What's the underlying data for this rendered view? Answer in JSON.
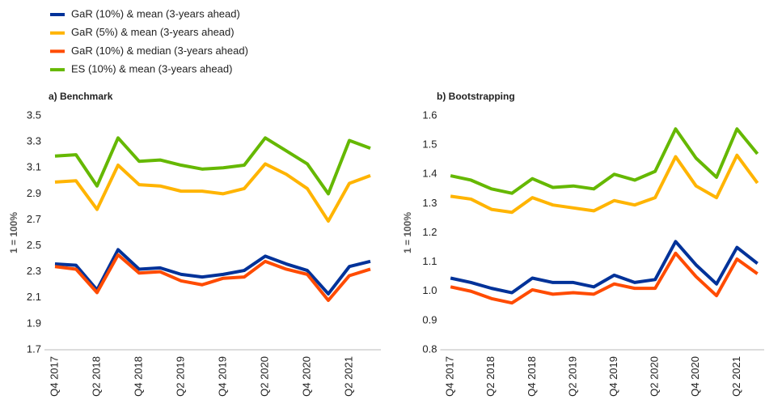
{
  "legend": {
    "names": [
      "GaR (10%) & mean (3-years ahead)",
      "GaR (5%) & mean (3-years ahead)",
      "GaR (10%) & median (3-years ahead)",
      "ES (10%) & mean (3-years ahead)"
    ],
    "colors": [
      "#003299",
      "#ffb400",
      "#ff4b00",
      "#65b800"
    ]
  },
  "chart_data": [
    {
      "type": "line",
      "title": "a) Benchmark",
      "y_label": "1 = 100%",
      "categories": [
        "Q4 2017",
        null,
        "Q2 2018",
        null,
        "Q4 2018",
        null,
        "Q2 2019",
        null,
        "Q4 2019",
        null,
        "Q2 2020",
        null,
        "Q4 2020",
        null,
        "Q2 2021",
        null
      ],
      "series": [
        {
          "values": [
            2.36,
            2.35,
            2.16,
            2.47,
            2.32,
            2.33,
            2.28,
            2.26,
            2.28,
            2.31,
            2.42,
            2.36,
            2.31,
            2.13,
            2.34,
            2.38
          ]
        },
        {
          "values": [
            2.99,
            3.0,
            2.78,
            3.12,
            2.97,
            2.96,
            2.92,
            2.92,
            2.9,
            2.94,
            3.13,
            3.05,
            2.94,
            2.69,
            2.98,
            3.04
          ]
        },
        {
          "values": [
            2.34,
            2.32,
            2.14,
            2.43,
            2.29,
            2.3,
            2.23,
            2.2,
            2.25,
            2.26,
            2.38,
            2.32,
            2.28,
            2.08,
            2.27,
            2.32
          ]
        },
        {
          "values": [
            3.19,
            3.2,
            2.96,
            3.33,
            3.15,
            3.16,
            3.12,
            3.09,
            3.1,
            3.12,
            3.33,
            3.23,
            3.13,
            2.9,
            3.31,
            3.25
          ]
        }
      ],
      "ylim": [
        1.7,
        3.5
      ],
      "yticks": [
        1.7,
        1.9,
        2.1,
        2.3,
        2.5,
        2.7,
        2.9,
        3.1,
        3.3,
        3.5
      ],
      "grid": false
    },
    {
      "type": "line",
      "title": "b) Bootstrapping",
      "y_label": "1 = 100%",
      "categories": [
        "Q4 2017",
        null,
        "Q2 2018",
        null,
        "Q4 2018",
        null,
        "Q2 2019",
        null,
        "Q4 2019",
        null,
        "Q2 2020",
        null,
        "Q4 2020",
        null,
        "Q2 2021",
        null
      ],
      "series": [
        {
          "values": [
            1.045,
            1.03,
            1.01,
            0.995,
            1.045,
            1.03,
            1.03,
            1.015,
            1.055,
            1.03,
            1.04,
            1.17,
            1.09,
            1.025,
            1.15,
            1.095
          ]
        },
        {
          "values": [
            1.325,
            1.315,
            1.28,
            1.27,
            1.32,
            1.295,
            1.285,
            1.275,
            1.31,
            1.295,
            1.32,
            1.46,
            1.36,
            1.32,
            1.465,
            1.37
          ]
        },
        {
          "values": [
            1.015,
            1.0,
            0.975,
            0.96,
            1.005,
            0.99,
            0.995,
            0.99,
            1.025,
            1.01,
            1.01,
            1.13,
            1.05,
            0.985,
            1.11,
            1.06
          ]
        },
        {
          "values": [
            1.395,
            1.38,
            1.35,
            1.335,
            1.385,
            1.355,
            1.36,
            1.35,
            1.4,
            1.38,
            1.41,
            1.555,
            1.455,
            1.39,
            1.555,
            1.47
          ]
        }
      ],
      "ylim": [
        0.8,
        1.6
      ],
      "yticks": [
        0.8,
        0.9,
        {
          "value": 1,
          "label": "1.0"
        },
        1.1,
        1.2,
        1.3,
        1.4,
        1.5,
        1.6
      ],
      "grid": false
    }
  ]
}
